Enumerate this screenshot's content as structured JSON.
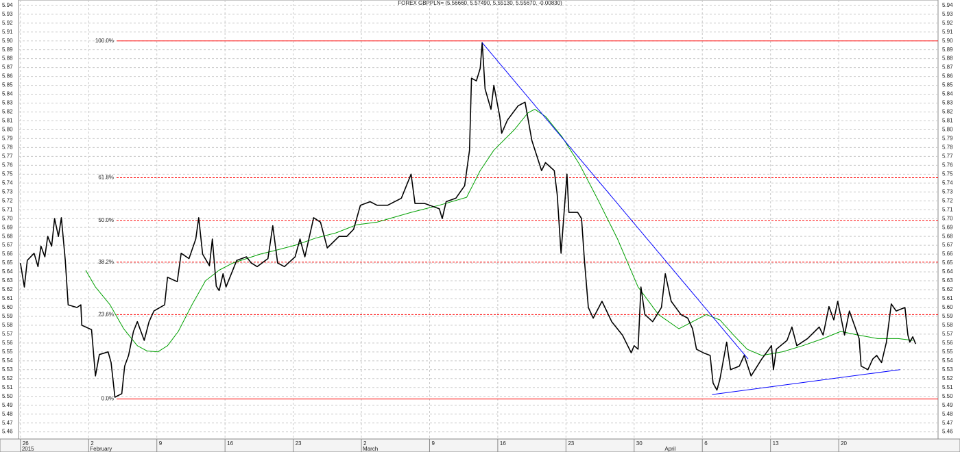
{
  "chart_data": {
    "type": "line",
    "title": "FOREX GBPPLN= (5.56660, 5.57490, 5.55130, 5.55670, -0.00830)",
    "xlim": [
      -0.2,
      94.2
    ],
    "ylim": [
      5.452,
      5.946
    ],
    "grid": true,
    "xticks": [
      {
        "value": 0,
        "label": "26"
      },
      {
        "value": 7,
        "label": "2"
      },
      {
        "value": 14,
        "label": "9"
      },
      {
        "value": 21,
        "label": "16"
      },
      {
        "value": 28,
        "label": "23"
      },
      {
        "value": 35,
        "label": "2"
      },
      {
        "value": 42,
        "label": "9"
      },
      {
        "value": 49,
        "label": "16"
      },
      {
        "value": 56,
        "label": "23"
      },
      {
        "value": 63,
        "label": "30"
      },
      {
        "value": 70,
        "label": "6"
      },
      {
        "value": 77,
        "label": "13"
      },
      {
        "value": 84,
        "label": "20"
      }
    ],
    "month_ticks": [
      {
        "value": 0,
        "label": "2015"
      },
      {
        "value": 7,
        "label": "February"
      },
      {
        "value": 35,
        "label": "March"
      },
      {
        "value": 66,
        "label": "April"
      }
    ],
    "yticks": [
      5.46,
      5.47,
      5.48,
      5.49,
      {
        "value": 5.5,
        "label": "5.50"
      },
      5.51,
      5.52,
      5.53,
      5.54,
      5.55,
      5.56,
      5.57,
      5.58,
      5.59,
      {
        "value": 5.6,
        "label": "5.60"
      },
      5.61,
      5.62,
      5.63,
      5.64,
      5.65,
      5.66,
      5.67,
      5.68,
      5.69,
      {
        "value": 5.7,
        "label": "5.70"
      },
      5.71,
      5.72,
      5.73,
      5.74,
      5.75,
      5.76,
      5.77,
      5.78,
      5.79,
      {
        "value": 5.8,
        "label": "5.80"
      },
      5.81,
      5.82,
      5.83,
      5.84,
      5.85,
      5.86,
      5.87,
      5.88,
      5.89,
      {
        "value": 5.9,
        "label": "5.90"
      },
      5.91,
      5.92,
      5.93,
      5.94
    ],
    "series": [
      {
        "color": "#000000",
        "x": [
          0,
          0.4,
          0.7,
          1.4,
          1.8,
          2.1,
          2.5,
          2.8,
          3.2,
          3.5,
          3.9,
          4.2,
          4.6,
          4.9,
          5.8,
          6.2,
          6.3,
          7.3,
          7.7,
          8.1,
          9.0,
          9.3,
          9.7,
          10.4,
          10.7,
          11.1,
          11.6,
          12.0,
          12.7,
          13.2,
          13.7,
          14.8,
          15.1,
          16.1,
          16.5,
          17.3,
          18.0,
          18.3,
          18.7,
          19.4,
          19.7,
          20.1,
          20.4,
          20.8,
          21.1,
          22.2,
          23.2,
          23.7,
          24.3,
          25.4,
          25.9,
          26.4,
          27.1,
          28.2,
          28.7,
          29.2,
          30.1,
          30.8,
          31.5,
          32.7,
          33.5,
          34.2,
          34.9,
          35.9,
          36.6,
          37.7,
          39.1,
          40.1,
          40.5,
          41.5,
          43.0,
          43.3,
          43.7,
          44.7,
          45.6,
          46.1,
          46.3,
          46.8,
          47.2,
          47.4,
          47.7,
          48.3,
          48.6,
          49.2,
          49.4,
          50.0,
          51.1,
          51.8,
          52.5,
          53.5,
          53.9,
          54.8,
          55.1,
          55.5,
          56.1,
          56.3,
          57.2,
          57.6,
          57.9,
          58.3,
          58.8,
          59.7,
          60.7,
          61.8,
          62.7,
          63.0,
          63.4,
          63.7,
          64.1,
          64.9,
          65.8,
          66.2,
          66.8,
          67.8,
          68.5,
          69.0,
          69.4,
          70.1,
          70.8,
          71.1,
          71.5,
          71.8,
          72.5,
          72.9,
          73.8,
          74.3,
          75.0,
          76.1,
          77.1,
          77.3,
          77.6,
          78.7,
          79.2,
          79.7,
          80.8,
          82.0,
          82.4,
          83.0,
          83.5,
          83.9,
          84.6,
          85.1,
          86.1,
          86.3,
          87.0,
          87.5,
          87.9,
          88.4,
          88.9,
          89.4,
          89.9,
          90.8,
          91.1,
          91.3,
          91.6,
          91.9
        ],
        "values": [
          5.65,
          5.623,
          5.653,
          5.661,
          5.646,
          5.669,
          5.657,
          5.68,
          5.669,
          5.7,
          5.68,
          5.701,
          5.653,
          5.603,
          5.6,
          5.603,
          5.58,
          5.575,
          5.523,
          5.547,
          5.55,
          5.538,
          5.499,
          5.503,
          5.534,
          5.546,
          5.573,
          5.584,
          5.563,
          5.584,
          5.596,
          5.603,
          5.634,
          5.629,
          5.661,
          5.655,
          5.677,
          5.701,
          5.66,
          5.647,
          5.677,
          5.624,
          5.619,
          5.638,
          5.623,
          5.653,
          5.657,
          5.65,
          5.646,
          5.655,
          5.692,
          5.65,
          5.646,
          5.657,
          5.677,
          5.657,
          5.701,
          5.696,
          5.667,
          5.68,
          5.68,
          5.688,
          5.715,
          5.719,
          5.715,
          5.715,
          5.723,
          5.75,
          5.717,
          5.717,
          5.711,
          5.7,
          5.719,
          5.723,
          5.737,
          5.777,
          5.858,
          5.855,
          5.869,
          5.898,
          5.846,
          5.823,
          5.85,
          5.815,
          5.796,
          5.811,
          5.827,
          5.831,
          5.788,
          5.754,
          5.763,
          5.754,
          5.727,
          5.661,
          5.75,
          5.707,
          5.707,
          5.7,
          5.653,
          5.6,
          5.588,
          5.607,
          5.584,
          5.569,
          5.549,
          5.557,
          5.553,
          5.623,
          5.592,
          5.584,
          5.6,
          5.638,
          5.607,
          5.592,
          5.588,
          5.576,
          5.553,
          5.549,
          5.546,
          5.515,
          5.507,
          5.519,
          5.561,
          5.53,
          5.534,
          5.546,
          5.523,
          5.542,
          5.557,
          5.53,
          5.553,
          5.563,
          5.578,
          5.557,
          5.565,
          5.578,
          5.569,
          5.601,
          5.586,
          5.607,
          5.569,
          5.596,
          5.565,
          5.534,
          5.53,
          5.542,
          5.546,
          5.538,
          5.561,
          5.604,
          5.596,
          5.6,
          5.569,
          5.561,
          5.567,
          5.559
        ]
      },
      {
        "color": "#00a000",
        "x": [
          6.7,
          7.7,
          9.2,
          10.6,
          12.0,
          13.0,
          14.1,
          15.1,
          16.2,
          17.6,
          19.0,
          20.4,
          21.8,
          23.2,
          24.6,
          26.1,
          28.2,
          30.3,
          32.4,
          34.5,
          36.6,
          40.1,
          43.0,
          45.8,
          47.2,
          48.6,
          50.7,
          52.1,
          52.8,
          53.9,
          55.6,
          57.4,
          59.2,
          61.3,
          63.4,
          65.5,
          67.6,
          69.0,
          70.4,
          71.8,
          73.2,
          74.6,
          76.1,
          78.2,
          80.3,
          82.4,
          84.2,
          86.0,
          88.0,
          90.1,
          91.6
        ],
        "values": [
          5.642,
          5.623,
          5.603,
          5.576,
          5.557,
          5.551,
          5.55,
          5.557,
          5.573,
          5.603,
          5.63,
          5.642,
          5.65,
          5.655,
          5.66,
          5.664,
          5.67,
          5.678,
          5.684,
          5.693,
          5.696,
          5.707,
          5.715,
          5.724,
          5.754,
          5.777,
          5.8,
          5.819,
          5.823,
          5.815,
          5.792,
          5.761,
          5.723,
          5.677,
          5.623,
          5.592,
          5.576,
          5.584,
          5.592,
          5.586,
          5.569,
          5.553,
          5.546,
          5.55,
          5.557,
          5.565,
          5.573,
          5.569,
          5.565,
          5.565,
          5.563
        ]
      }
    ],
    "trend_color": "#0000ff",
    "trendlines": [
      {
        "x": [
          47.4,
          74.7
        ],
        "y": [
          5.898,
          5.542
        ]
      },
      {
        "x": [
          71.0,
          90.3
        ],
        "y": [
          5.502,
          5.53
        ]
      }
    ],
    "level_color": "#ff0000",
    "levels": [
      {
        "label": "100.0%",
        "value": 5.9,
        "style": "solid"
      },
      {
        "label": "61.8%",
        "value": 5.746,
        "style": "dashed"
      },
      {
        "label": "50.0%",
        "value": 5.698,
        "style": "dashed"
      },
      {
        "label": "38.2%",
        "value": 5.651,
        "style": "dashed"
      },
      {
        "label": "23.6%",
        "value": 5.592,
        "style": "dashed"
      },
      {
        "label": "0.0%",
        "value": 5.497,
        "style": "solid"
      }
    ]
  }
}
